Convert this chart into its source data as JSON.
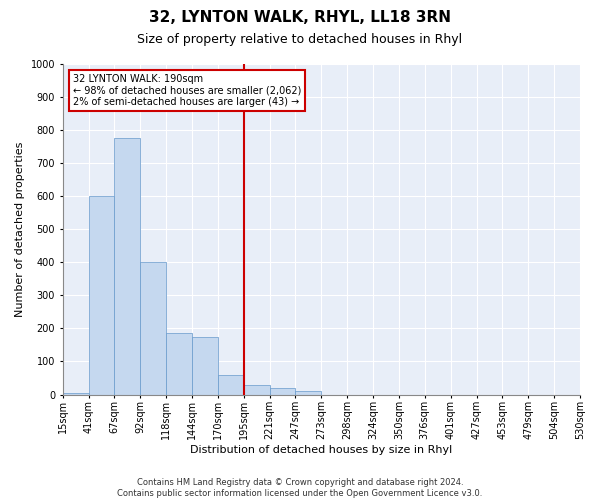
{
  "title": "32, LYNTON WALK, RHYL, LL18 3RN",
  "subtitle": "Size of property relative to detached houses in Rhyl",
  "xlabel": "Distribution of detached houses by size in Rhyl",
  "ylabel": "Number of detached properties",
  "footer_line1": "Contains HM Land Registry data © Crown copyright and database right 2024.",
  "footer_line2": "Contains public sector information licensed under the Open Government Licence v3.0.",
  "bar_values": [
    5,
    600,
    775,
    400,
    185,
    175,
    60,
    30,
    20,
    10,
    0,
    0,
    0,
    0,
    0,
    0,
    0,
    0,
    0,
    0
  ],
  "categories": [
    "15sqm",
    "41sqm",
    "67sqm",
    "92sqm",
    "118sqm",
    "144sqm",
    "170sqm",
    "195sqm",
    "221sqm",
    "247sqm",
    "273sqm",
    "298sqm",
    "324sqm",
    "350sqm",
    "376sqm",
    "401sqm",
    "427sqm",
    "453sqm",
    "479sqm",
    "504sqm",
    "530sqm"
  ],
  "bar_color": "#c5d8ef",
  "bar_edge_color": "#6699cc",
  "background_color": "#e8eef8",
  "grid_color": "#ffffff",
  "fig_facecolor": "#ffffff",
  "property_line_x": 7.0,
  "annotation_text_line1": "32 LYNTON WALK: 190sqm",
  "annotation_text_line2": "← 98% of detached houses are smaller (2,062)",
  "annotation_text_line3": "2% of semi-detached houses are larger (43) →",
  "annotation_box_facecolor": "#ffffff",
  "annotation_box_edgecolor": "#cc0000",
  "vline_color": "#cc0000",
  "ylim": [
    0,
    1000
  ],
  "yticks": [
    0,
    100,
    200,
    300,
    400,
    500,
    600,
    700,
    800,
    900,
    1000
  ],
  "title_fontsize": 11,
  "subtitle_fontsize": 9,
  "xlabel_fontsize": 8,
  "ylabel_fontsize": 8,
  "tick_fontsize": 7,
  "annotation_fontsize": 7,
  "footer_fontsize": 6
}
